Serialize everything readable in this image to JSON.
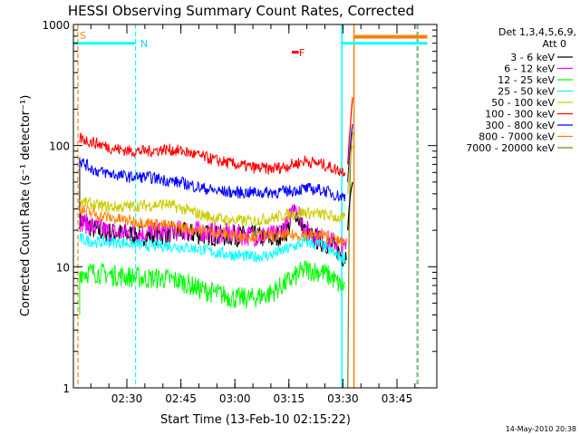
{
  "chart_data": {
    "type": "line",
    "title": "HESSI Observing Summary Count Rates, Corrected",
    "xlabel": "Start Time (13-Feb-10 02:15:22)",
    "ylabel": "Corrected Count Rate (s⁻¹ detector⁻¹)",
    "timestamp": "14-May-2010 20:38",
    "y_scale": "log",
    "ylim": [
      1,
      1000
    ],
    "xlim_minutes": [
      0,
      100
    ],
    "x_ticks": [
      {
        "label": "02:30",
        "minute": 15
      },
      {
        "label": "02:45",
        "minute": 30
      },
      {
        "label": "03:00",
        "minute": 45
      },
      {
        "label": "03:15",
        "minute": 60
      },
      {
        "label": "03:30",
        "minute": 75
      },
      {
        "label": "03:45",
        "minute": 90
      }
    ],
    "y_ticks": [
      {
        "label": "1",
        "value": 1
      },
      {
        "label": "10",
        "value": 10
      },
      {
        "label": "100",
        "value": 100
      },
      {
        "label": "1000",
        "value": 1000
      }
    ],
    "legend": {
      "placement": "right",
      "header1": "Det 1,3,4,5,6,9,",
      "header2": "Att 0",
      "entries": [
        {
          "label": "3 - 6 keV",
          "color": "#000000"
        },
        {
          "label": "6 - 12 keV",
          "color": "#ff00ff"
        },
        {
          "label": "12 - 25 keV",
          "color": "#00ff00"
        },
        {
          "label": "25 - 50 keV",
          "color": "#00ffff"
        },
        {
          "label": "50 - 100 keV",
          "color": "#cccc00"
        },
        {
          "label": "100 - 300 keV",
          "color": "#ff0000"
        },
        {
          "label": "300 - 800 keV",
          "color": "#0000ff"
        },
        {
          "label": "800 - 7000 keV",
          "color": "#ff8000"
        },
        {
          "label": "7000 - 20000 keV",
          "color": "#808000"
        }
      ]
    },
    "annotations": {
      "s_label": "S",
      "n_label": "N",
      "f_label": "F"
    },
    "event_bars": [
      {
        "kind": "saa",
        "color": "#00ffff",
        "start": -2,
        "end": 16.5,
        "value": 700
      },
      {
        "kind": "saa",
        "color": "#00ffff",
        "start": 75.5,
        "end": 100,
        "value": 700
      },
      {
        "kind": "attenuator",
        "color": "#ff8000",
        "start": 79,
        "end": 100,
        "value": 790
      },
      {
        "kind": "flare",
        "color": "#ff0000",
        "start": 61.2,
        "end": 63.2,
        "value": 590
      }
    ],
    "event_lines": [
      {
        "color": "#00ffff",
        "style": "solid",
        "minute": -1.5
      },
      {
        "color": "#ff8000",
        "style": "dashed",
        "minute": 0
      },
      {
        "color": "#00ffff",
        "style": "dashed",
        "minute": 16.5
      },
      {
        "color": "#00ffff",
        "style": "solid",
        "minute": 75.5
      },
      {
        "color": "#ff8000",
        "style": "solid",
        "minute": 79
      },
      {
        "color": "#00ffff",
        "style": "dashed",
        "minute": 97
      },
      {
        "color": "#ff8000",
        "style": "dashed",
        "minute": 97.3
      }
    ],
    "series": [
      {
        "name": "3 - 6 keV",
        "color": "#000000",
        "x": [
          0.5,
          5,
          10,
          20,
          30,
          40,
          50,
          56,
          60,
          62,
          64,
          66,
          70,
          73,
          75,
          76,
          76.5,
          77
        ],
        "y": [
          25,
          20,
          19,
          18,
          19,
          18,
          18,
          17,
          20,
          30,
          22,
          18,
          16,
          15,
          13,
          12,
          12,
          14
        ],
        "spike": {
          "x": 0.5,
          "y": 80
        }
      },
      {
        "name": "6 - 12 keV",
        "color": "#ff00ff",
        "x": [
          0.5,
          5,
          10,
          20,
          30,
          40,
          50,
          56,
          60,
          62,
          64,
          66,
          70,
          73,
          75,
          76,
          76.5,
          77
        ],
        "y": [
          24,
          21,
          19,
          19,
          20,
          19,
          18,
          18,
          22,
          35,
          24,
          19,
          17,
          16,
          15,
          14,
          14,
          16
        ]
      },
      {
        "name": "12 - 25 keV",
        "color": "#00ff00",
        "x": [
          0.5,
          5,
          10,
          20,
          25,
          30,
          35,
          40,
          45,
          50,
          55,
          60,
          65,
          70,
          73,
          75,
          76.5
        ],
        "y": [
          9,
          9,
          8.5,
          8,
          8,
          7.5,
          6.5,
          6,
          5.5,
          5.5,
          6,
          7.5,
          9.5,
          9,
          8,
          7,
          7
        ],
        "spike": {
          "x": 0.5,
          "y": 4
        }
      },
      {
        "name": "25 - 50 keV",
        "color": "#00ffff",
        "x": [
          0.5,
          5,
          10,
          20,
          25,
          30,
          35,
          40,
          45,
          50,
          55,
          60,
          65,
          70,
          73,
          75,
          76.5
        ],
        "y": [
          17,
          16,
          16,
          15,
          15,
          14.5,
          14,
          13,
          12.5,
          12,
          12.5,
          14,
          16,
          15,
          13,
          12,
          12
        ]
      },
      {
        "name": "50 - 100 keV",
        "color": "#cccc00",
        "x": [
          0.5,
          5,
          10,
          20,
          25,
          30,
          35,
          40,
          45,
          50,
          55,
          60,
          65,
          70,
          73,
          75,
          76.5
        ],
        "y": [
          35,
          32,
          31,
          32,
          33,
          30,
          27,
          25,
          24,
          24,
          25,
          27,
          28,
          27,
          26,
          25,
          25
        ]
      },
      {
        "name": "100 - 300 keV",
        "color": "#ff0000",
        "x": [
          0.5,
          5,
          10,
          15,
          20,
          25,
          30,
          35,
          40,
          45,
          50,
          55,
          60,
          65,
          70,
          73,
          75,
          76.5
        ],
        "y": [
          115,
          105,
          95,
          90,
          90,
          93,
          90,
          82,
          75,
          70,
          66,
          64,
          68,
          75,
          70,
          65,
          62,
          62
        ]
      },
      {
        "name": "300 - 800 keV",
        "color": "#0000ff",
        "x": [
          0.5,
          5,
          10,
          15,
          20,
          25,
          30,
          35,
          40,
          45,
          50,
          55,
          60,
          65,
          70,
          73,
          75,
          76.5
        ],
        "y": [
          75,
          62,
          58,
          55,
          55,
          52,
          49,
          45,
          42,
          41,
          41,
          41,
          42,
          44,
          43,
          40,
          38,
          38
        ]
      },
      {
        "name": "800 - 7000 keV",
        "color": "#ff8000",
        "x": [
          0.5,
          5,
          10,
          20,
          30,
          40,
          45,
          50,
          55,
          60,
          65,
          70,
          73,
          75,
          76.5
        ],
        "y": [
          30,
          27,
          25,
          23,
          21,
          19,
          18,
          18,
          18,
          18,
          18.5,
          18,
          17,
          16,
          16
        ]
      },
      {
        "name": "7000 - 20000 keV",
        "color": "#808000",
        "x": [],
        "y": []
      }
    ],
    "rise": {
      "x": [
        77.2,
        77.6,
        78.0,
        78.3,
        78.6
      ],
      "series": [
        {
          "color": "#ff0000",
          "y": [
            70,
            110,
            150,
            200,
            250
          ]
        },
        {
          "color": "#0000ff",
          "y": [
            50,
            75,
            105,
            130,
            150
          ]
        },
        {
          "color": "#808000",
          "y": [
            0.9,
            20,
            70,
            110,
            130
          ]
        },
        {
          "color": "#cccc00",
          "y": [
            40,
            60,
            80,
            90,
            100
          ]
        },
        {
          "color": "#00ffff",
          "y": [
            20,
            30,
            40,
            45,
            50
          ]
        },
        {
          "color": "#000000",
          "y": [
            20,
            30,
            40,
            45,
            50
          ]
        }
      ]
    }
  }
}
